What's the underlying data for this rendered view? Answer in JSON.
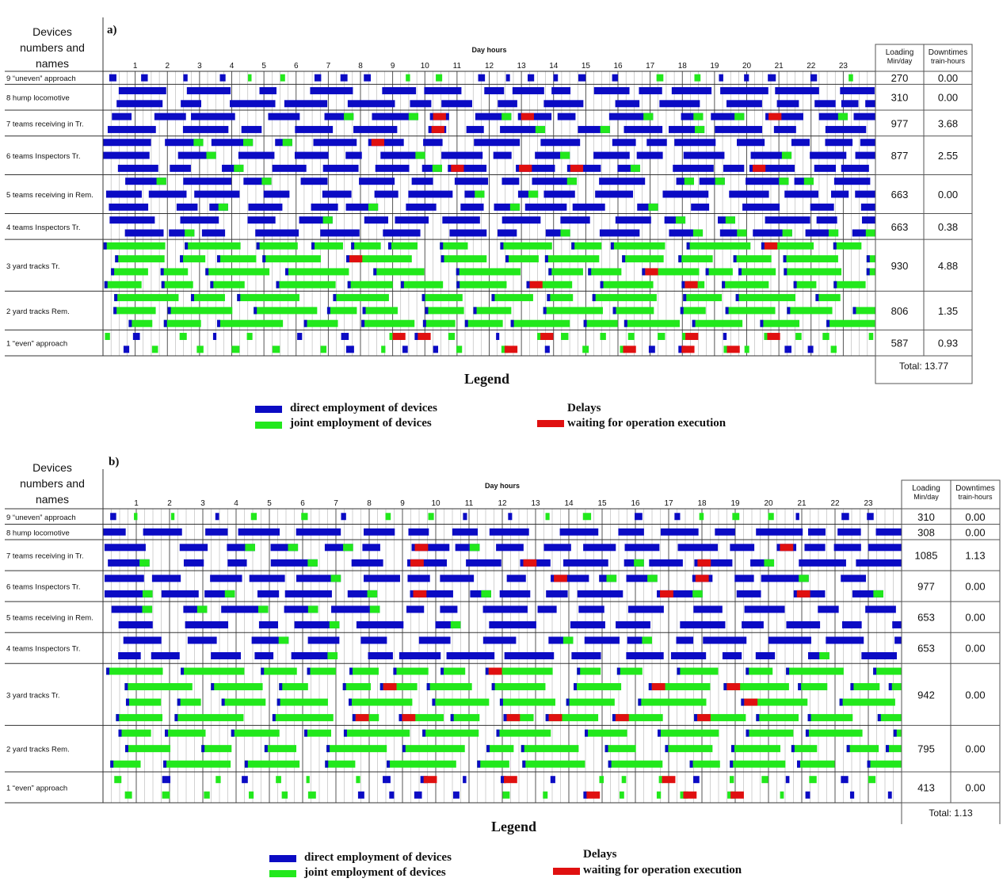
{
  "colors": {
    "direct": "#0b0bc4",
    "joint": "#22e81c",
    "delay": "#e01010",
    "grid": "#444444",
    "grid_light": "#9a9a9a"
  },
  "header_devices": [
    "Devices",
    "numbers and",
    "names"
  ],
  "axis_title": "Day hours",
  "loading_header": [
    "Loading",
    "Min/day"
  ],
  "downtimes_header": [
    "Downtimes",
    "train-hours"
  ],
  "legend": {
    "title": "Legend",
    "direct": "direct employment of devices",
    "joint": "joint employment of devices",
    "delays_title": "Delays",
    "delay": "waiting for operation execution"
  },
  "chart_data": [
    {
      "type": "gantt",
      "panel_label": "a)",
      "xlabel": "Day hours",
      "x_ticks": [
        1,
        2,
        3,
        4,
        5,
        6,
        7,
        8,
        9,
        10,
        11,
        12,
        13,
        14,
        15,
        16,
        17,
        18,
        19,
        20,
        21,
        22,
        23
      ],
      "xlim": [
        0,
        24
      ],
      "devices": [
        "9 “uneven” approach",
        "8 hump locomotive",
        "7 teams receiving in Tr.",
        "6 teams Inspectors Tr.",
        "5 teams receiving in Rem.",
        "4 teams Inspectors Tr.",
        "3 yard tracks Tr.",
        "2 yard tracks Rem.",
        "1 “even” approach"
      ],
      "loading": [
        "270",
        "310",
        "977",
        "877",
        "663",
        "663",
        "930",
        "806",
        "587"
      ],
      "downtimes": [
        "0.00",
        "0.00",
        "3.68",
        "2.55",
        "0.00",
        "0.38",
        "4.88",
        "1.35",
        "0.93"
      ],
      "total": "Total: 13.77",
      "lanes": [
        1,
        2,
        2,
        3,
        3,
        2,
        4,
        3,
        2
      ]
    },
    {
      "type": "gantt",
      "panel_label": "b)",
      "xlabel": "Day hours",
      "x_ticks": [
        1,
        2,
        3,
        4,
        5,
        6,
        7,
        8,
        9,
        10,
        11,
        12,
        13,
        14,
        15,
        16,
        17,
        18,
        19,
        20,
        21,
        22,
        23
      ],
      "xlim": [
        0,
        24
      ],
      "devices": [
        "9 “uneven” approach",
        "8 hump locomotive",
        "7 teams receiving in Tr.",
        "6 teams Inspectors Tr.",
        "5 teams receiving in Rem.",
        "4 teams Inspectors Tr.",
        "3 yard tracks Tr.",
        "2 yard tracks Rem.",
        "1 “even” approach"
      ],
      "loading": [
        "310",
        "308",
        "1085",
        "977",
        "653",
        "653",
        "942",
        "795",
        "413"
      ],
      "downtimes": [
        "0.00",
        "0.00",
        "1.13",
        "0.00",
        "0.00",
        "0.00",
        "0.00",
        "0.00",
        "0.00"
      ],
      "total": "Total: 1.13",
      "lanes": [
        1,
        1,
        2,
        2,
        2,
        2,
        4,
        3,
        2
      ]
    }
  ]
}
